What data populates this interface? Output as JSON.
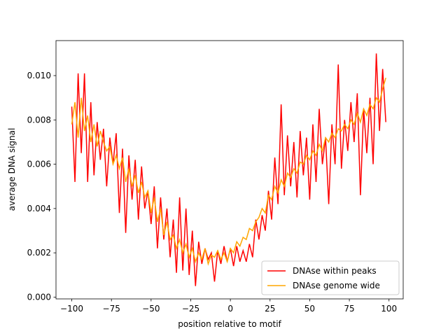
{
  "chart_data": {
    "type": "line",
    "xlabel": "position relative to motif",
    "ylabel": "average DNA signal",
    "x": [
      -100,
      -98,
      -96,
      -94,
      -92,
      -90,
      -88,
      -86,
      -84,
      -82,
      -80,
      -78,
      -76,
      -74,
      -72,
      -70,
      -68,
      -66,
      -64,
      -62,
      -60,
      -58,
      -56,
      -54,
      -52,
      -50,
      -48,
      -46,
      -44,
      -42,
      -40,
      -38,
      -36,
      -34,
      -32,
      -30,
      -28,
      -26,
      -24,
      -22,
      -20,
      -18,
      -16,
      -14,
      -12,
      -10,
      -8,
      -6,
      -4,
      -2,
      0,
      2,
      4,
      6,
      8,
      10,
      12,
      14,
      16,
      18,
      20,
      22,
      24,
      26,
      28,
      30,
      32,
      34,
      36,
      38,
      40,
      42,
      44,
      46,
      48,
      50,
      52,
      54,
      56,
      58,
      60,
      62,
      64,
      66,
      68,
      70,
      72,
      74,
      76,
      78,
      80,
      82,
      84,
      86,
      88,
      90,
      92,
      94,
      96,
      98
    ],
    "series": [
      {
        "name": "DNAse within peaks",
        "color": "#ff0000",
        "values": [
          0.0086,
          0.0052,
          0.0101,
          0.0065,
          0.0101,
          0.0052,
          0.0088,
          0.0055,
          0.0079,
          0.0062,
          0.0076,
          0.005,
          0.0072,
          0.006,
          0.0074,
          0.0038,
          0.0067,
          0.0029,
          0.0064,
          0.0044,
          0.0062,
          0.0035,
          0.0059,
          0.004,
          0.0048,
          0.0033,
          0.005,
          0.0022,
          0.0045,
          0.0026,
          0.004,
          0.0018,
          0.0035,
          0.0011,
          0.0045,
          0.0012,
          0.004,
          0.001,
          0.003,
          0.0005,
          0.0025,
          0.0015,
          0.0022,
          0.0017,
          0.002,
          0.0007,
          0.0021,
          0.0015,
          0.0023,
          0.0016,
          0.0022,
          0.0014,
          0.0023,
          0.0016,
          0.0021,
          0.0016,
          0.0024,
          0.0018,
          0.0035,
          0.0026,
          0.0037,
          0.003,
          0.0048,
          0.0035,
          0.0063,
          0.0042,
          0.0087,
          0.0046,
          0.0073,
          0.005,
          0.007,
          0.0045,
          0.0075,
          0.0055,
          0.0072,
          0.0044,
          0.0078,
          0.0052,
          0.0085,
          0.006,
          0.0072,
          0.0042,
          0.0078,
          0.006,
          0.0105,
          0.0058,
          0.008,
          0.0066,
          0.0088,
          0.007,
          0.0092,
          0.0046,
          0.0085,
          0.0065,
          0.009,
          0.006,
          0.011,
          0.0075,
          0.0103,
          0.0079
        ]
      },
      {
        "name": "DNAse genome wide",
        "color": "#ffa500",
        "values": [
          0.0078,
          0.0088,
          0.0072,
          0.009,
          0.0075,
          0.0082,
          0.007,
          0.0078,
          0.0068,
          0.0075,
          0.007,
          0.0066,
          0.0068,
          0.006,
          0.0064,
          0.0058,
          0.0063,
          0.0052,
          0.0058,
          0.005,
          0.0055,
          0.0047,
          0.0052,
          0.0045,
          0.0048,
          0.0038,
          0.0045,
          0.0034,
          0.004,
          0.0028,
          0.0034,
          0.0026,
          0.0028,
          0.0022,
          0.0026,
          0.002,
          0.0024,
          0.0018,
          0.0022,
          0.0016,
          0.002,
          0.0017,
          0.0022,
          0.0015,
          0.0019,
          0.0018,
          0.0021,
          0.0017,
          0.002,
          0.0016,
          0.0022,
          0.002,
          0.0025,
          0.0023,
          0.0027,
          0.0026,
          0.0031,
          0.003,
          0.0034,
          0.0036,
          0.004,
          0.0038,
          0.0046,
          0.0044,
          0.005,
          0.0047,
          0.0053,
          0.005,
          0.0056,
          0.0054,
          0.0058,
          0.0056,
          0.0061,
          0.006,
          0.0064,
          0.0062,
          0.0066,
          0.0064,
          0.0069,
          0.0066,
          0.0072,
          0.007,
          0.0074,
          0.0072,
          0.0076,
          0.0075,
          0.0078,
          0.0076,
          0.008,
          0.0078,
          0.0083,
          0.0079,
          0.0085,
          0.0082,
          0.0087,
          0.0085,
          0.009,
          0.0088,
          0.0094,
          0.0099
        ]
      }
    ],
    "xlim": [
      -109.95,
      108.95
    ],
    "xticks": [
      {
        "value": -100,
        "label": "−100"
      },
      {
        "value": -75,
        "label": "−75"
      },
      {
        "value": -50,
        "label": "−50"
      },
      {
        "value": -25,
        "label": "−25"
      },
      0,
      25,
      50,
      75,
      100
    ],
    "ylim": [
      -8e-05,
      0.01158
    ],
    "yticks": [
      {
        "value": 0,
        "label": "0.000"
      },
      {
        "value": 0.002,
        "label": "0.002"
      },
      {
        "value": 0.004,
        "label": "0.004"
      },
      {
        "value": 0.006,
        "label": "0.006"
      },
      {
        "value": 0.008,
        "label": "0.008"
      },
      {
        "value": 0.01,
        "label": "0.010"
      }
    ],
    "legend": "lower right"
  }
}
